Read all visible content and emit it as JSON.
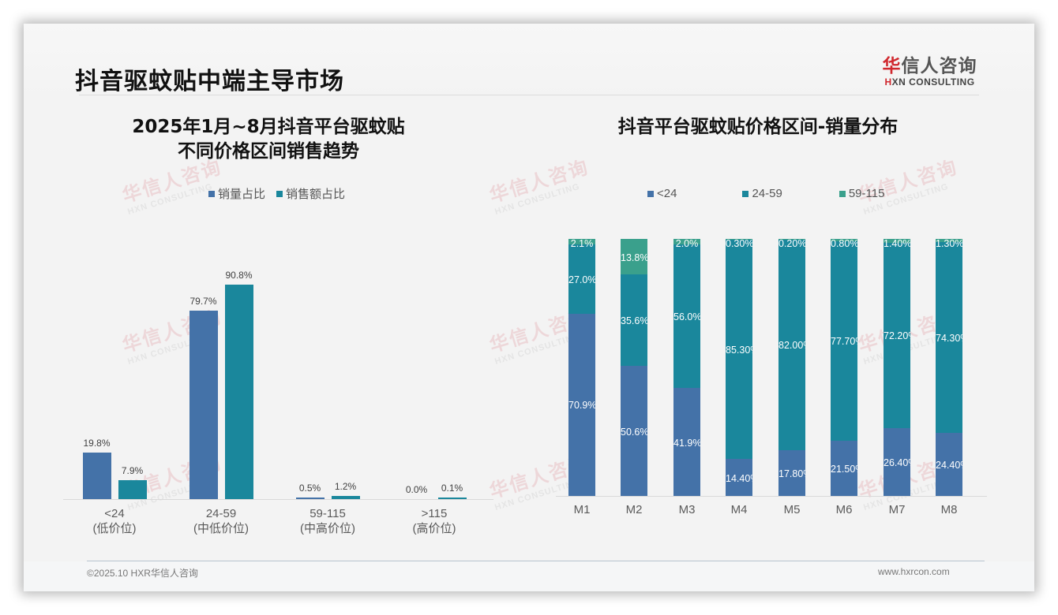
{
  "page": {
    "title": "抖音驱蚊贴中端主导市场"
  },
  "logo": {
    "cn_accent": "华",
    "cn_rest": "信人咨询",
    "en_accent": "H",
    "en_rest": "XN CONSULTING"
  },
  "watermark": {
    "cn": "华信人咨询",
    "en": "HXN CONSULTING"
  },
  "footer": {
    "copyright": "©2025.10 HXR华信人咨询",
    "url": "www.hxrcon.com"
  },
  "colors": {
    "series_volume": "#4472a8",
    "series_revenue": "#1a879c",
    "series_59_115": "#3aa08c",
    "brand_red": "#d0282e"
  },
  "left_chart": {
    "title_line1": "2025年1月~8月抖音平台驱蚊贴",
    "title_line2": "不同价格区间销售趋势",
    "legend": [
      "销量占比",
      "销售额占比"
    ],
    "categories": [
      {
        "range": "<24",
        "tier": "(低价位)",
        "volume_label": "19.8%",
        "revenue_label": "7.9%"
      },
      {
        "range": "24-59",
        "tier": "(中低价位)",
        "volume_label": "79.7%",
        "revenue_label": "90.8%"
      },
      {
        "range": "59-115",
        "tier": "(中高价位)",
        "volume_label": "0.5%",
        "revenue_label": "1.2%"
      },
      {
        "range": ">115",
        "tier": "(高价位)",
        "volume_label": "0.0%",
        "revenue_label": "0.1%"
      }
    ]
  },
  "right_chart": {
    "title": "抖音平台驱蚊贴价格区间-销量分布",
    "legend": [
      "<24",
      "24-59",
      "59-115"
    ],
    "months": [
      {
        "label": "M1",
        "lt24": "70.9%",
        "mid": "27.0%",
        "high": "2.1%"
      },
      {
        "label": "M2",
        "lt24": "50.6%",
        "mid": "35.6%",
        "high": "13.8%"
      },
      {
        "label": "M3",
        "lt24": "41.9%",
        "mid": "56.0%",
        "high": "2.0%"
      },
      {
        "label": "M4",
        "lt24": "14.40%",
        "mid": "85.30%",
        "high": "0.30%"
      },
      {
        "label": "M5",
        "lt24": "17.80%",
        "mid": "82.00%",
        "high": "0.20%"
      },
      {
        "label": "M6",
        "lt24": "21.50%",
        "mid": "77.70%",
        "high": "0.80%"
      },
      {
        "label": "M7",
        "lt24": "26.40%",
        "mid": "72.20%",
        "high": "1.40%"
      },
      {
        "label": "M8",
        "lt24": "24.40%",
        "mid": "74.30%",
        "high": "1.30%"
      }
    ]
  },
  "chart_data": [
    {
      "type": "bar",
      "title": "2025年1月~8月抖音平台驱蚊贴 不同价格区间销售趋势",
      "categories": [
        "<24 (低价位)",
        "24-59 (中低价位)",
        "59-115 (中高价位)",
        ">115 (高价位)"
      ],
      "series": [
        {
          "name": "销量占比",
          "values": [
            19.8,
            79.7,
            0.5,
            0.0
          ]
        },
        {
          "name": "销售额占比",
          "values": [
            7.9,
            90.8,
            1.2,
            0.1
          ]
        }
      ],
      "xlabel": "",
      "ylabel": "",
      "unit": "%",
      "ylim": [
        0,
        100
      ],
      "grid": false,
      "legend_position": "top"
    },
    {
      "type": "bar",
      "stacked": true,
      "title": "抖音平台驱蚊贴价格区间-销量分布",
      "categories": [
        "M1",
        "M2",
        "M3",
        "M4",
        "M5",
        "M6",
        "M7",
        "M8"
      ],
      "series": [
        {
          "name": "<24",
          "values": [
            70.9,
            50.6,
            41.9,
            14.4,
            17.8,
            21.5,
            26.4,
            24.4
          ]
        },
        {
          "name": "24-59",
          "values": [
            27.0,
            35.6,
            56.0,
            85.3,
            82.0,
            77.7,
            72.2,
            74.3
          ]
        },
        {
          "name": "59-115",
          "values": [
            2.1,
            13.8,
            2.0,
            0.3,
            0.2,
            0.8,
            1.4,
            1.3
          ]
        }
      ],
      "xlabel": "",
      "ylabel": "",
      "unit": "%",
      "ylim": [
        0,
        100
      ],
      "grid": false,
      "legend_position": "top"
    }
  ]
}
